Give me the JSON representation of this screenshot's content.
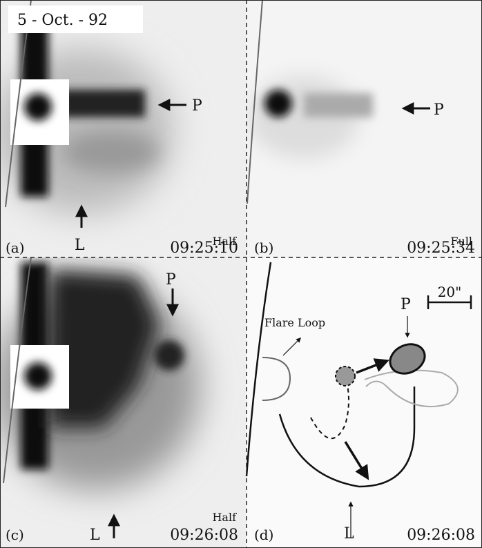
{
  "figure": {
    "date": "5 - Oct. - 92",
    "panels": [
      {
        "label": "(a)",
        "mode": "Half",
        "time": "09:25:10",
        "arrows": [
          "P",
          "L"
        ]
      },
      {
        "label": "(b)",
        "mode": "Full",
        "time": "09:25:34",
        "arrows": [
          "P"
        ]
      },
      {
        "label": "(c)",
        "mode": "Half",
        "time": "09:26:08",
        "arrows": [
          "P",
          "L"
        ]
      },
      {
        "label": "(d)",
        "time": "09:26:08",
        "annotations": [
          "Flare Loop",
          "P",
          "L"
        ],
        "scale": "20\""
      }
    ]
  }
}
